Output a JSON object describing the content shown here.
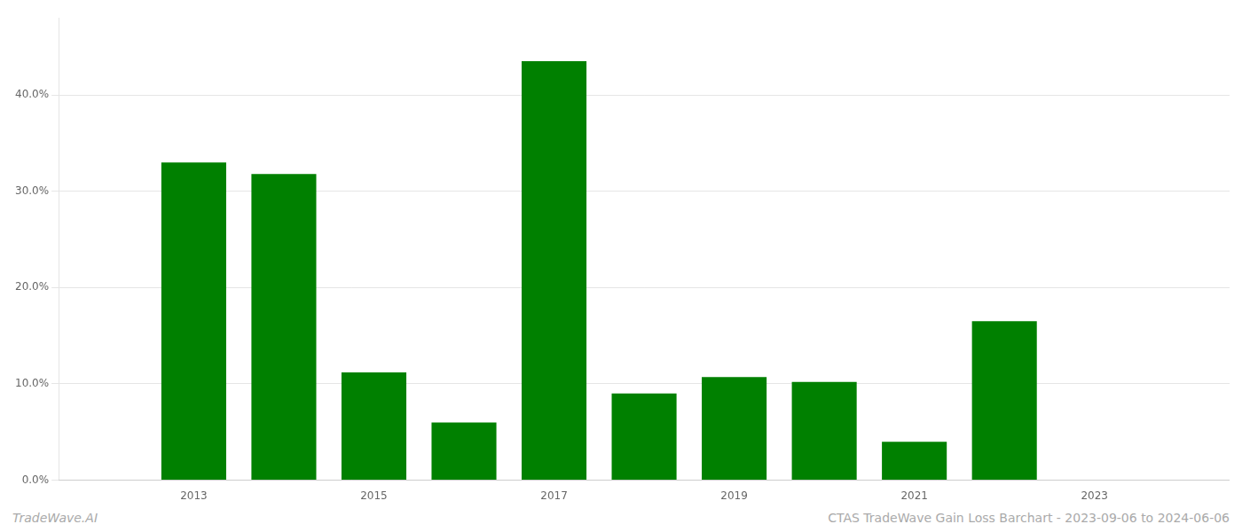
{
  "chart_data": {
    "type": "bar",
    "x": [
      2013,
      2014,
      2015,
      2016,
      2017,
      2018,
      2019,
      2020,
      2021,
      2022,
      2023
    ],
    "values": [
      0.33,
      0.318,
      0.112,
      0.06,
      0.435,
      0.09,
      0.107,
      0.102,
      0.04,
      0.165,
      0.0
    ],
    "color": "#008000",
    "xlim": [
      2011.5,
      2024.5
    ],
    "xticks": [
      2013,
      2015,
      2017,
      2019,
      2021,
      2023
    ],
    "ylim": [
      0,
      0.48
    ],
    "yticks": [
      {
        "value": 0.0,
        "label": "0.0%"
      },
      {
        "value": 0.1,
        "label": "10.0%"
      },
      {
        "value": 0.2,
        "label": "20.0%"
      },
      {
        "value": 0.3,
        "label": "30.0%"
      },
      {
        "value": 0.4,
        "label": "40.0%"
      }
    ],
    "grid": true,
    "annotations": [
      "TradeWave.AI",
      "CTAS TradeWave Gain Loss Barchart - 2023-09-06 to 2024-06-06"
    ]
  }
}
